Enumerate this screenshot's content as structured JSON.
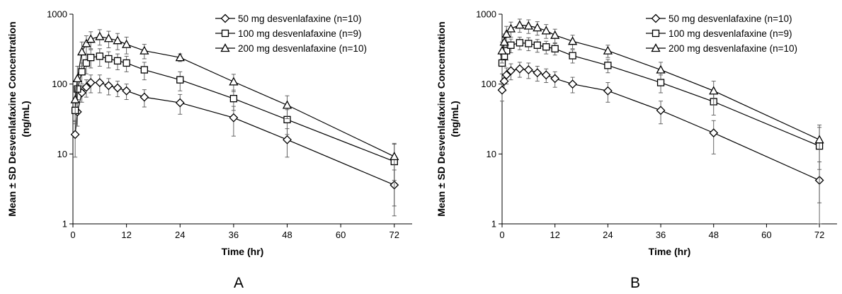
{
  "chart_data": [
    {
      "type": "line",
      "panel_label": "A",
      "xlabel": "Time (hr)",
      "ylabel_line1": "Mean ± SD Desvenlafaxine Concentration",
      "ylabel_line2": "(ng/mL)",
      "yscale": "log",
      "ylim": [
        1,
        1000
      ],
      "xlim": [
        0,
        76
      ],
      "xticks": [
        "0",
        "12",
        "24",
        "36",
        "48",
        "60",
        "72"
      ],
      "yticks": [
        "1",
        "10",
        "100",
        "1000"
      ],
      "legend_position": "top-right",
      "series": [
        {
          "name": "50 mg desvenlafaxine (n=10)",
          "marker": "diamond",
          "x": [
            0.5,
            1,
            2,
            3,
            4,
            6,
            8,
            10,
            12,
            16,
            24,
            36,
            48,
            72
          ],
          "y": [
            19,
            40,
            75,
            90,
            105,
            105,
            95,
            88,
            80,
            65,
            54,
            33,
            16,
            3.6
          ],
          "err": [
            10,
            15,
            20,
            25,
            30,
            30,
            25,
            22,
            20,
            18,
            17,
            15,
            7,
            2.3
          ]
        },
        {
          "name": "100 mg desvenlafaxine (n=9)",
          "marker": "square",
          "x": [
            0.5,
            1,
            2,
            3,
            4,
            6,
            8,
            10,
            12,
            16,
            24,
            36,
            48,
            72
          ],
          "y": [
            42,
            85,
            150,
            200,
            240,
            250,
            230,
            215,
            200,
            160,
            115,
            62,
            31,
            7.8
          ],
          "err": [
            15,
            30,
            50,
            60,
            70,
            70,
            60,
            55,
            50,
            45,
            35,
            20,
            12,
            6
          ]
        },
        {
          "name": "200 mg desvenlafaxine (n=10)",
          "marker": "triangle",
          "x": [
            0.5,
            1,
            2,
            3,
            4,
            6,
            8,
            10,
            12,
            16,
            24,
            36,
            48,
            72
          ],
          "y": [
            60,
            120,
            290,
            380,
            440,
            480,
            450,
            420,
            370,
            300,
            240,
            108,
            50,
            9.2
          ],
          "err": [
            30,
            60,
            110,
            110,
            120,
            120,
            120,
            110,
            100,
            70,
            30,
            30,
            18,
            5
          ]
        }
      ]
    },
    {
      "type": "line",
      "panel_label": "B",
      "xlabel": "Time (hr)",
      "ylabel_line1": "Mean ± SD Desvenlafaxine Concentration",
      "ylabel_line2": "(ng/mL)",
      "yscale": "log",
      "ylim": [
        1,
        1000
      ],
      "xlim": [
        0,
        76
      ],
      "xticks": [
        "0",
        "12",
        "24",
        "36",
        "48",
        "60",
        "72"
      ],
      "yticks": [
        "1",
        "10",
        "100",
        "1000"
      ],
      "legend_position": "top-right",
      "series": [
        {
          "name": "50 mg desvenlafaxine (n=10)",
          "marker": "diamond",
          "x": [
            0,
            0.5,
            1,
            2,
            4,
            6,
            8,
            10,
            12,
            16,
            24,
            36,
            48,
            72
          ],
          "y": [
            82,
            110,
            135,
            155,
            165,
            160,
            145,
            135,
            120,
            100,
            80,
            42,
            20,
            4.2
          ],
          "err": [
            25,
            30,
            35,
            40,
            40,
            40,
            35,
            30,
            30,
            25,
            25,
            15,
            10,
            3.5
          ]
        },
        {
          "name": "100 mg desvenlafaxine (n=9)",
          "marker": "square",
          "x": [
            0,
            0.5,
            1,
            2,
            4,
            6,
            8,
            10,
            12,
            16,
            24,
            36,
            48,
            72
          ],
          "y": [
            200,
            250,
            300,
            360,
            390,
            380,
            360,
            340,
            320,
            255,
            185,
            105,
            56,
            13
          ],
          "err": [
            60,
            70,
            80,
            80,
            80,
            80,
            75,
            70,
            60,
            55,
            40,
            30,
            20,
            11
          ]
        },
        {
          "name": "200 mg desvenlafaxine (n=10)",
          "marker": "triangle",
          "x": [
            0,
            0.5,
            1,
            2,
            4,
            6,
            8,
            10,
            12,
            16,
            24,
            36,
            48,
            72
          ],
          "y": [
            300,
            400,
            520,
            620,
            700,
            680,
            640,
            580,
            500,
            410,
            300,
            160,
            80,
            16
          ],
          "err": [
            100,
            120,
            150,
            150,
            150,
            150,
            140,
            130,
            110,
            90,
            60,
            45,
            30,
            10
          ]
        }
      ]
    }
  ]
}
